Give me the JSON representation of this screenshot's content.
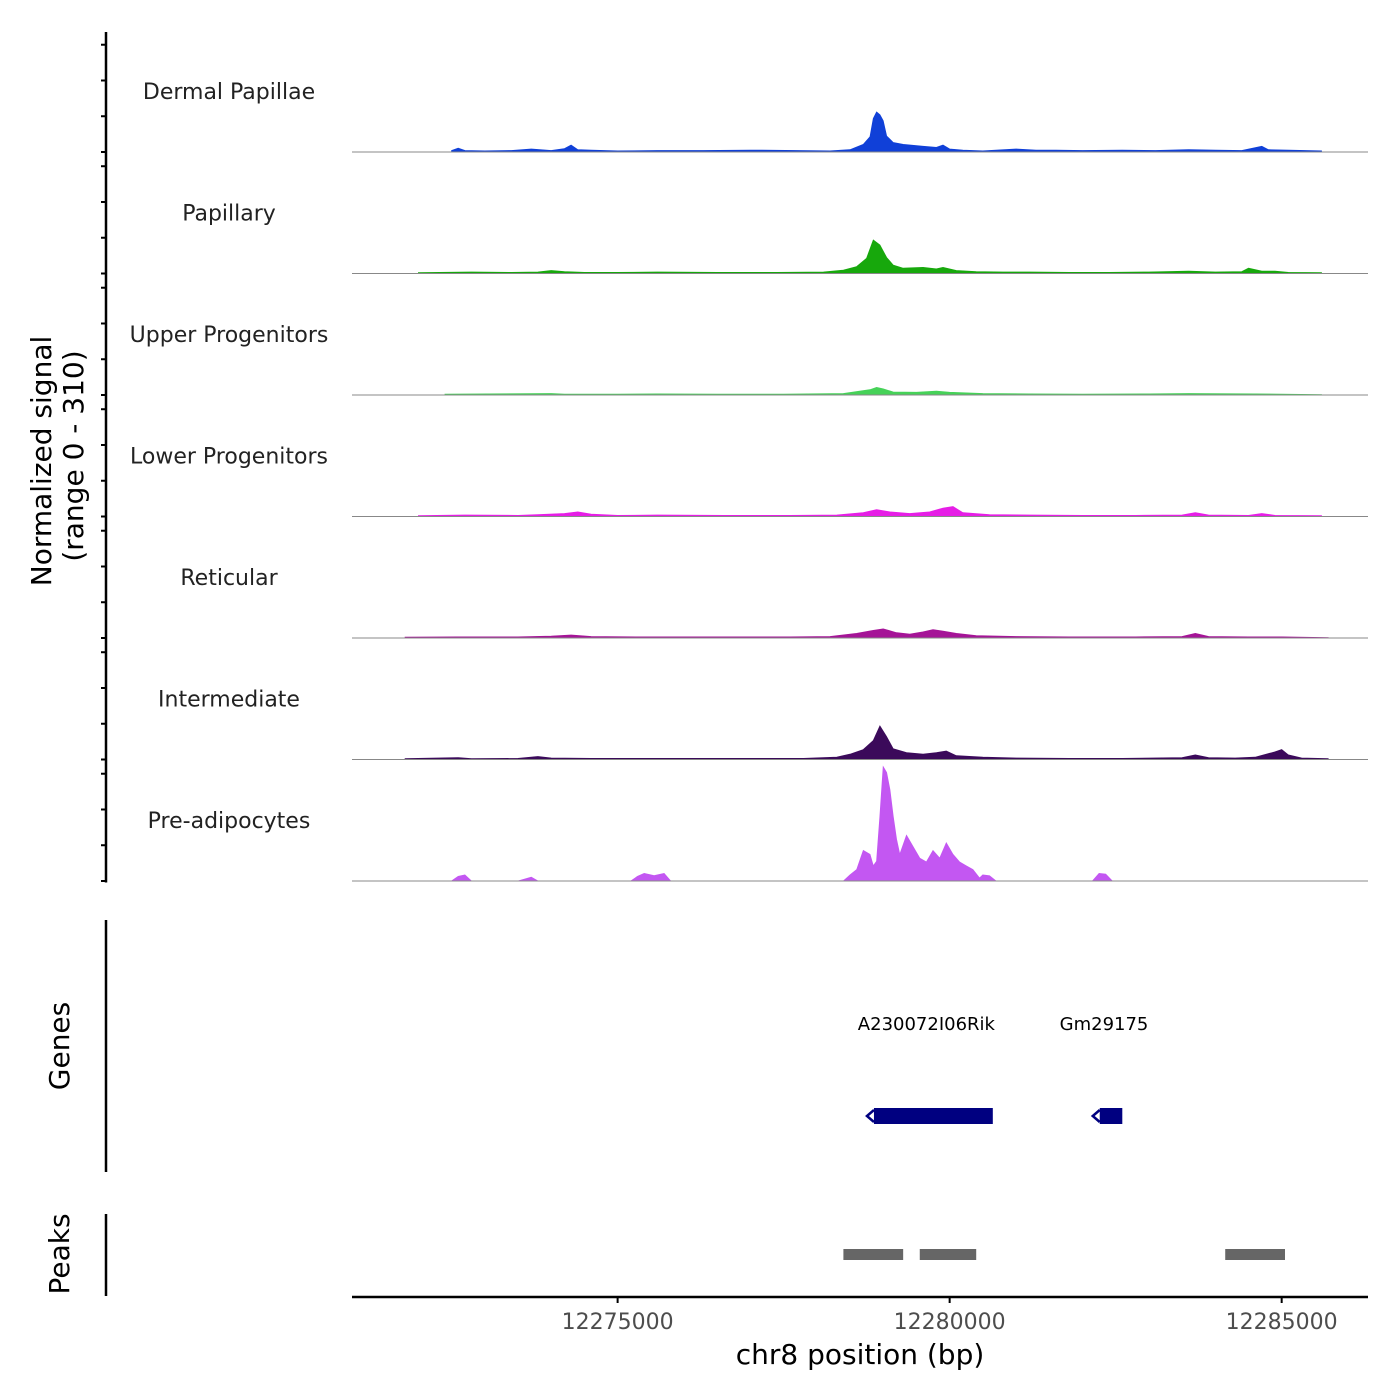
{
  "chart_data": {
    "type": "area",
    "title": "",
    "region": {
      "chromosome": "chr8",
      "start": 12271000,
      "end": 12286300
    },
    "ylabel": {
      "line1": "Normalized signal",
      "line2": "(range 0 - 310)"
    },
    "ylim": [
      0,
      310
    ],
    "xlabel": "chr8 position (bp)",
    "xticks": [
      {
        "value": 12275000,
        "label": "12275000"
      },
      {
        "value": 12280000,
        "label": "12280000"
      },
      {
        "value": 12285000,
        "label": "12285000"
      }
    ],
    "series": [
      {
        "name": "Dermal Papillae",
        "color": "#1040d8",
        "baseline": [
          [
            12271000,
            0
          ],
          [
            12286300,
            0
          ]
        ],
        "points": [
          [
            12272500,
            4
          ],
          [
            12272600,
            10
          ],
          [
            12272700,
            4
          ],
          [
            12273000,
            3
          ],
          [
            12273400,
            4
          ],
          [
            12273700,
            8
          ],
          [
            12274000,
            4
          ],
          [
            12274200,
            9
          ],
          [
            12274300,
            18
          ],
          [
            12274400,
            6
          ],
          [
            12274600,
            5
          ],
          [
            12275000,
            3
          ],
          [
            12275600,
            4
          ],
          [
            12276300,
            4
          ],
          [
            12277000,
            5
          ],
          [
            12277700,
            4
          ],
          [
            12278200,
            3
          ],
          [
            12278500,
            6
          ],
          [
            12278700,
            20
          ],
          [
            12278800,
            40
          ],
          [
            12278850,
            88
          ],
          [
            12278900,
            105
          ],
          [
            12278950,
            98
          ],
          [
            12279000,
            82
          ],
          [
            12279050,
            42
          ],
          [
            12279150,
            25
          ],
          [
            12279300,
            20
          ],
          [
            12279600,
            15
          ],
          [
            12279800,
            12
          ],
          [
            12279900,
            18
          ],
          [
            12280000,
            8
          ],
          [
            12280200,
            5
          ],
          [
            12280500,
            3
          ],
          [
            12281000,
            8
          ],
          [
            12281300,
            5
          ],
          [
            12281600,
            5
          ],
          [
            12282000,
            4
          ],
          [
            12282600,
            5
          ],
          [
            12283100,
            4
          ],
          [
            12283600,
            6
          ],
          [
            12284000,
            5
          ],
          [
            12284400,
            4
          ],
          [
            12284700,
            15
          ],
          [
            12284800,
            6
          ],
          [
            12285100,
            5
          ],
          [
            12285600,
            3
          ]
        ]
      },
      {
        "name": "Papillary",
        "color": "#17a80c",
        "baseline": [
          [
            12271000,
            0
          ],
          [
            12286300,
            0
          ]
        ],
        "points": [
          [
            12272000,
            2
          ],
          [
            12272800,
            4
          ],
          [
            12273400,
            3
          ],
          [
            12273800,
            4
          ],
          [
            12274000,
            8
          ],
          [
            12274200,
            5
          ],
          [
            12274500,
            3
          ],
          [
            12275000,
            3
          ],
          [
            12275600,
            4
          ],
          [
            12276500,
            3
          ],
          [
            12277400,
            3
          ],
          [
            12278100,
            4
          ],
          [
            12278400,
            9
          ],
          [
            12278600,
            18
          ],
          [
            12278750,
            40
          ],
          [
            12278850,
            88
          ],
          [
            12278950,
            75
          ],
          [
            12279050,
            42
          ],
          [
            12279150,
            22
          ],
          [
            12279300,
            14
          ],
          [
            12279600,
            16
          ],
          [
            12279800,
            12
          ],
          [
            12279900,
            16
          ],
          [
            12280100,
            8
          ],
          [
            12280400,
            5
          ],
          [
            12280800,
            4
          ],
          [
            12281200,
            4
          ],
          [
            12281800,
            3
          ],
          [
            12282400,
            3
          ],
          [
            12283000,
            4
          ],
          [
            12283600,
            6
          ],
          [
            12284000,
            4
          ],
          [
            12284400,
            5
          ],
          [
            12284500,
            14
          ],
          [
            12284700,
            6
          ],
          [
            12284900,
            6
          ],
          [
            12285100,
            3
          ],
          [
            12285600,
            2
          ]
        ]
      },
      {
        "name": "Upper Progenitors",
        "color": "#46d258",
        "baseline": [
          [
            12271000,
            0
          ],
          [
            12286300,
            0
          ]
        ],
        "points": [
          [
            12272400,
            2
          ],
          [
            12274000,
            4
          ],
          [
            12274200,
            2
          ],
          [
            12275000,
            2
          ],
          [
            12275600,
            3
          ],
          [
            12276500,
            2
          ],
          [
            12277500,
            2
          ],
          [
            12278400,
            4
          ],
          [
            12278800,
            14
          ],
          [
            12278900,
            20
          ],
          [
            12279000,
            16
          ],
          [
            12279150,
            8
          ],
          [
            12279500,
            7
          ],
          [
            12279800,
            10
          ],
          [
            12280000,
            7
          ],
          [
            12280500,
            4
          ],
          [
            12281200,
            3
          ],
          [
            12282000,
            2
          ],
          [
            12283000,
            3
          ],
          [
            12283600,
            4
          ],
          [
            12284600,
            3
          ],
          [
            12285600,
            1
          ]
        ]
      },
      {
        "name": "Lower Progenitors",
        "color": "#e61ee6",
        "baseline": [
          [
            12271000,
            0
          ],
          [
            12286300,
            0
          ]
        ],
        "points": [
          [
            12272000,
            2
          ],
          [
            12272700,
            4
          ],
          [
            12273500,
            3
          ],
          [
            12273800,
            5
          ],
          [
            12274200,
            8
          ],
          [
            12274400,
            12
          ],
          [
            12274600,
            6
          ],
          [
            12275000,
            3
          ],
          [
            12275600,
            4
          ],
          [
            12276600,
            3
          ],
          [
            12277600,
            3
          ],
          [
            12278300,
            4
          ],
          [
            12278700,
            10
          ],
          [
            12278900,
            18
          ],
          [
            12279100,
            12
          ],
          [
            12279400,
            8
          ],
          [
            12279700,
            12
          ],
          [
            12279900,
            22
          ],
          [
            12280050,
            26
          ],
          [
            12280200,
            10
          ],
          [
            12280600,
            5
          ],
          [
            12281200,
            4
          ],
          [
            12282000,
            3
          ],
          [
            12282800,
            3
          ],
          [
            12283500,
            4
          ],
          [
            12283700,
            10
          ],
          [
            12283900,
            4
          ],
          [
            12284500,
            3
          ],
          [
            12284700,
            8
          ],
          [
            12284900,
            3
          ],
          [
            12285600,
            2
          ]
        ]
      },
      {
        "name": "Reticular",
        "color": "#a51497",
        "baseline": [
          [
            12271000,
            0
          ],
          [
            12286300,
            0
          ]
        ],
        "points": [
          [
            12271800,
            2
          ],
          [
            12272600,
            3
          ],
          [
            12273500,
            3
          ],
          [
            12274000,
            5
          ],
          [
            12274300,
            8
          ],
          [
            12274600,
            4
          ],
          [
            12275300,
            3
          ],
          [
            12276000,
            3
          ],
          [
            12276800,
            3
          ],
          [
            12277600,
            3
          ],
          [
            12278200,
            4
          ],
          [
            12278600,
            12
          ],
          [
            12278850,
            20
          ],
          [
            12279000,
            24
          ],
          [
            12279200,
            14
          ],
          [
            12279400,
            10
          ],
          [
            12279600,
            16
          ],
          [
            12279750,
            22
          ],
          [
            12279900,
            18
          ],
          [
            12280100,
            12
          ],
          [
            12280400,
            6
          ],
          [
            12281000,
            4
          ],
          [
            12281800,
            3
          ],
          [
            12282800,
            3
          ],
          [
            12283500,
            4
          ],
          [
            12283700,
            12
          ],
          [
            12283900,
            4
          ],
          [
            12284500,
            3
          ],
          [
            12285000,
            3
          ],
          [
            12285700,
            1
          ]
        ]
      },
      {
        "name": "Intermediate",
        "color": "#3b0a5a",
        "baseline": [
          [
            12271000,
            0
          ],
          [
            12286300,
            0
          ]
        ],
        "points": [
          [
            12271800,
            2
          ],
          [
            12272600,
            5
          ],
          [
            12272800,
            2
          ],
          [
            12273500,
            3
          ],
          [
            12273800,
            8
          ],
          [
            12274000,
            4
          ],
          [
            12274600,
            3
          ],
          [
            12275400,
            3
          ],
          [
            12276200,
            3
          ],
          [
            12277000,
            3
          ],
          [
            12277800,
            3
          ],
          [
            12278300,
            6
          ],
          [
            12278500,
            14
          ],
          [
            12278700,
            26
          ],
          [
            12278850,
            50
          ],
          [
            12278950,
            88
          ],
          [
            12279050,
            60
          ],
          [
            12279150,
            28
          ],
          [
            12279350,
            18
          ],
          [
            12279600,
            14
          ],
          [
            12279800,
            18
          ],
          [
            12279950,
            22
          ],
          [
            12280100,
            10
          ],
          [
            12280500,
            6
          ],
          [
            12281000,
            4
          ],
          [
            12281800,
            3
          ],
          [
            12282600,
            3
          ],
          [
            12283500,
            5
          ],
          [
            12283700,
            12
          ],
          [
            12283900,
            5
          ],
          [
            12284300,
            4
          ],
          [
            12284600,
            6
          ],
          [
            12284900,
            20
          ],
          [
            12285000,
            26
          ],
          [
            12285100,
            12
          ],
          [
            12285300,
            4
          ],
          [
            12285700,
            2
          ]
        ]
      },
      {
        "name": "Pre-adipocytes",
        "color": "#c357f2",
        "baseline": [
          [
            12271000,
            0
          ],
          [
            12286300,
            0
          ]
        ],
        "points": [
          [
            12272500,
            0
          ],
          [
            12272600,
            12
          ],
          [
            12272700,
            16
          ],
          [
            12272800,
            0
          ],
          [
            12273500,
            0
          ],
          [
            12273700,
            10
          ],
          [
            12273800,
            0
          ],
          [
            12275200,
            0
          ],
          [
            12275300,
            12
          ],
          [
            12275400,
            20
          ],
          [
            12275550,
            14
          ],
          [
            12275700,
            20
          ],
          [
            12275800,
            0
          ],
          [
            12278400,
            0
          ],
          [
            12278500,
            16
          ],
          [
            12278600,
            30
          ],
          [
            12278700,
            80
          ],
          [
            12278800,
            70
          ],
          [
            12278850,
            40
          ],
          [
            12278900,
            52
          ],
          [
            12278950,
            170
          ],
          [
            12279000,
            300
          ],
          [
            12279050,
            285
          ],
          [
            12279100,
            240
          ],
          [
            12279150,
            170
          ],
          [
            12279200,
            110
          ],
          [
            12279250,
            70
          ],
          [
            12279350,
            120
          ],
          [
            12279450,
            90
          ],
          [
            12279550,
            60
          ],
          [
            12279650,
            50
          ],
          [
            12279750,
            80
          ],
          [
            12279850,
            60
          ],
          [
            12279950,
            100
          ],
          [
            12280050,
            70
          ],
          [
            12280150,
            50
          ],
          [
            12280250,
            40
          ],
          [
            12280350,
            30
          ],
          [
            12280450,
            8
          ],
          [
            12280500,
            16
          ],
          [
            12280600,
            14
          ],
          [
            12280700,
            0
          ],
          [
            12282150,
            0
          ],
          [
            12282250,
            20
          ],
          [
            12282350,
            18
          ],
          [
            12282450,
            0
          ]
        ]
      }
    ],
    "genes": [
      {
        "name": "A230072I06Rik",
        "start": 12278800,
        "end": 12280650,
        "strand": "-",
        "color": "#000080"
      },
      {
        "name": "Gm29175",
        "start": 12282200,
        "end": 12282600,
        "strand": "-",
        "color": "#000080"
      }
    ],
    "peaks": [
      {
        "start": 12278400,
        "end": 12279300
      },
      {
        "start": 12279550,
        "end": 12280400
      },
      {
        "start": 12284150,
        "end": 12285050
      }
    ],
    "panel_labels": {
      "genes": "Genes",
      "peaks": "Peaks"
    },
    "colors": {
      "axis": "#000000",
      "baseline": "#888888",
      "peak": "#666666",
      "tick_text": "#4d4d4d"
    }
  }
}
